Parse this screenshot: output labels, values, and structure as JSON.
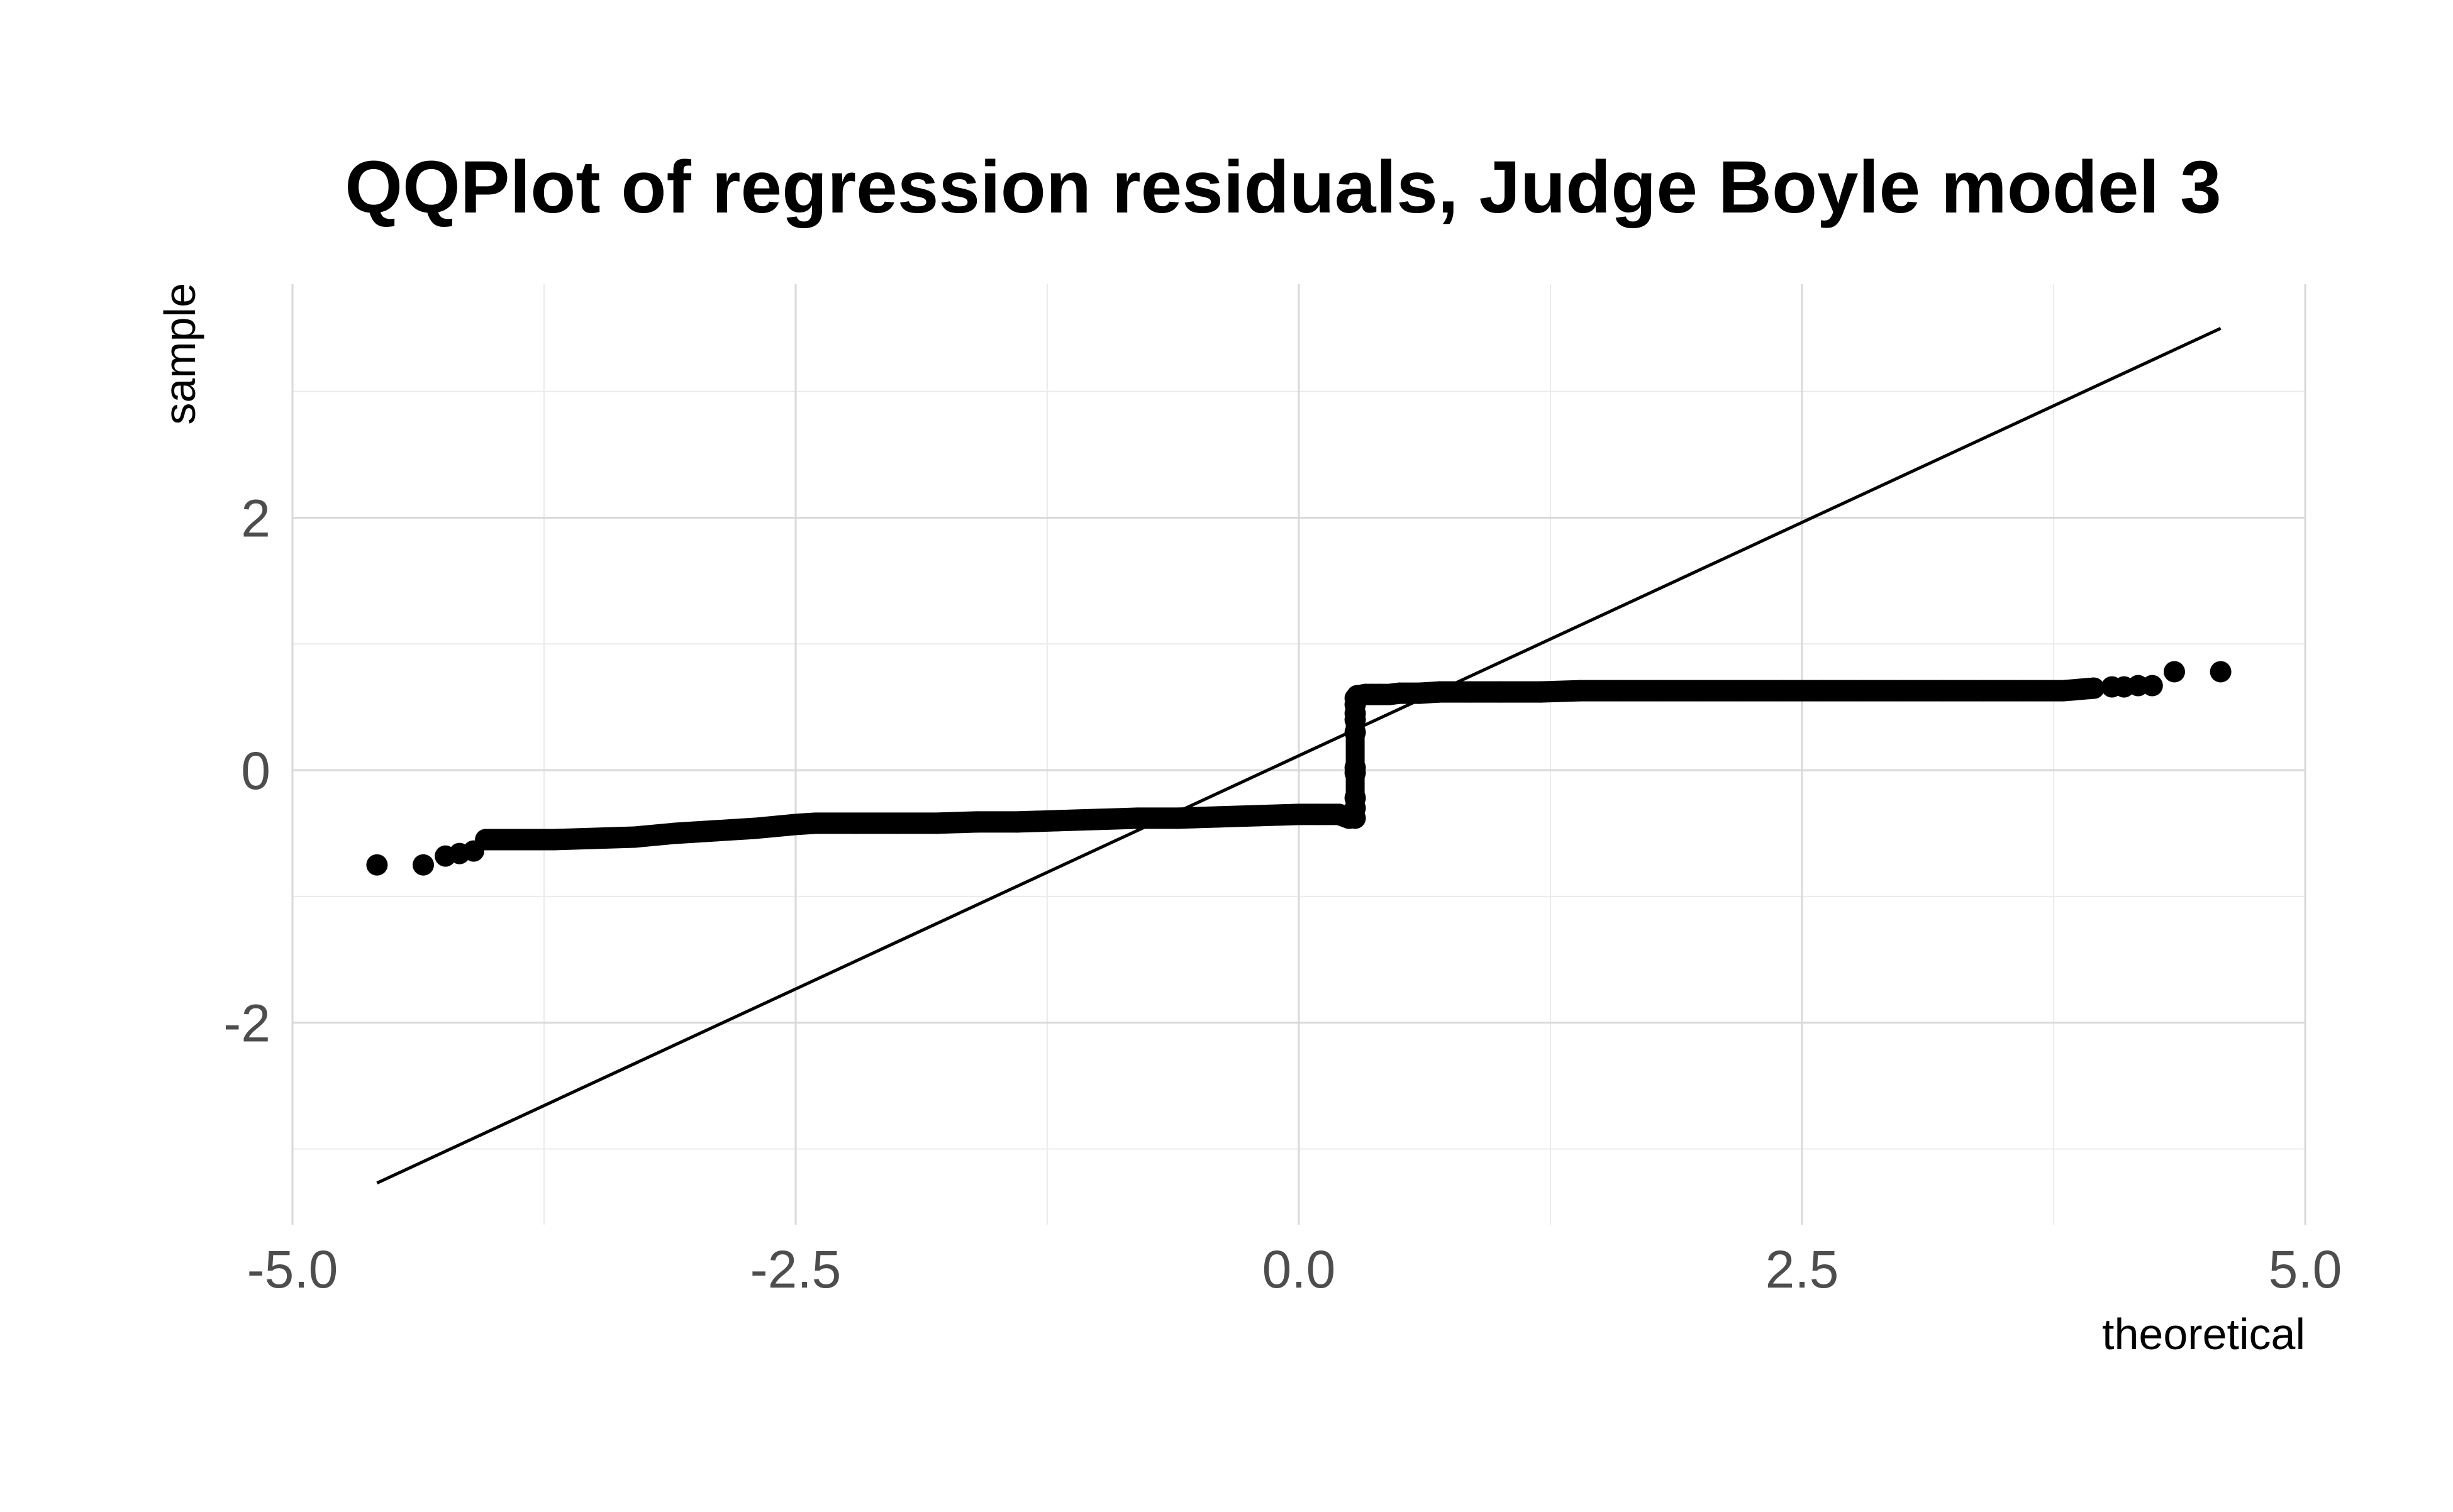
{
  "chart_data": {
    "type": "scatter",
    "title": "QQPlot of regression residuals, Judge Boyle model 3",
    "xlabel": "theoretical",
    "ylabel": "sample",
    "xlim": [
      -5.0,
      5.0
    ],
    "ylim": [
      -3.6,
      3.85
    ],
    "x_ticks": [
      -5.0,
      -2.5,
      0.0,
      2.5,
      5.0
    ],
    "x_tick_labels": [
      "-5.0",
      "-2.5",
      "0.0",
      "2.5",
      "5.0"
    ],
    "y_ticks": [
      -2,
      0,
      2
    ],
    "y_tick_labels": [
      "-2",
      "0",
      "2"
    ],
    "grid": true,
    "legend": "none",
    "point_color": "#000000",
    "line_color": "#000000",
    "reference_line": {
      "x": [
        -4.58,
        4.58
      ],
      "y": [
        -3.27,
        3.5
      ]
    },
    "series": [
      {
        "points": {
          "x": [
            -4.58,
            -4.35,
            -4.24,
            -4.17,
            -4.1,
            -4.04,
            -3.9,
            -3.7,
            -3.5,
            -3.3,
            -3.1,
            -2.9,
            -2.7,
            -2.5,
            -2.4,
            -2.2,
            -2.0,
            -1.8,
            -1.6,
            -1.4,
            -1.2,
            -1.0,
            -0.8,
            -0.6,
            -0.4,
            -0.2,
            0.0,
            0.1,
            0.2,
            0.25,
            0.28,
            0.28,
            0.28,
            0.28,
            0.28,
            0.28,
            0.28,
            0.28,
            0.28,
            0.28,
            0.29,
            0.3,
            0.33,
            0.36,
            0.4,
            0.45,
            0.5,
            0.6,
            0.7,
            0.85,
            1.0,
            1.2,
            1.4,
            1.6,
            1.8,
            2.0,
            2.2,
            2.4,
            2.6,
            2.8,
            3.0,
            3.2,
            3.4,
            3.6,
            3.8,
            3.95,
            4.04,
            4.1,
            4.17,
            4.24,
            4.35,
            4.58
          ],
          "y": [
            -0.75,
            -0.75,
            -0.68,
            -0.66,
            -0.64,
            -0.55,
            -0.55,
            -0.55,
            -0.54,
            -0.53,
            -0.5,
            -0.48,
            -0.46,
            -0.43,
            -0.42,
            -0.42,
            -0.42,
            -0.42,
            -0.41,
            -0.41,
            -0.4,
            -0.39,
            -0.38,
            -0.38,
            -0.37,
            -0.36,
            -0.35,
            -0.35,
            -0.35,
            -0.38,
            -0.38,
            -0.3,
            -0.22,
            -0.02,
            0.02,
            0.3,
            0.4,
            0.45,
            0.52,
            0.57,
            0.59,
            0.59,
            0.6,
            0.6,
            0.6,
            0.6,
            0.61,
            0.61,
            0.62,
            0.62,
            0.62,
            0.62,
            0.63,
            0.63,
            0.63,
            0.63,
            0.63,
            0.63,
            0.63,
            0.63,
            0.63,
            0.63,
            0.63,
            0.63,
            0.63,
            0.65,
            0.66,
            0.66,
            0.67,
            0.67,
            0.78,
            0.78
          ]
        }
      }
    ]
  }
}
